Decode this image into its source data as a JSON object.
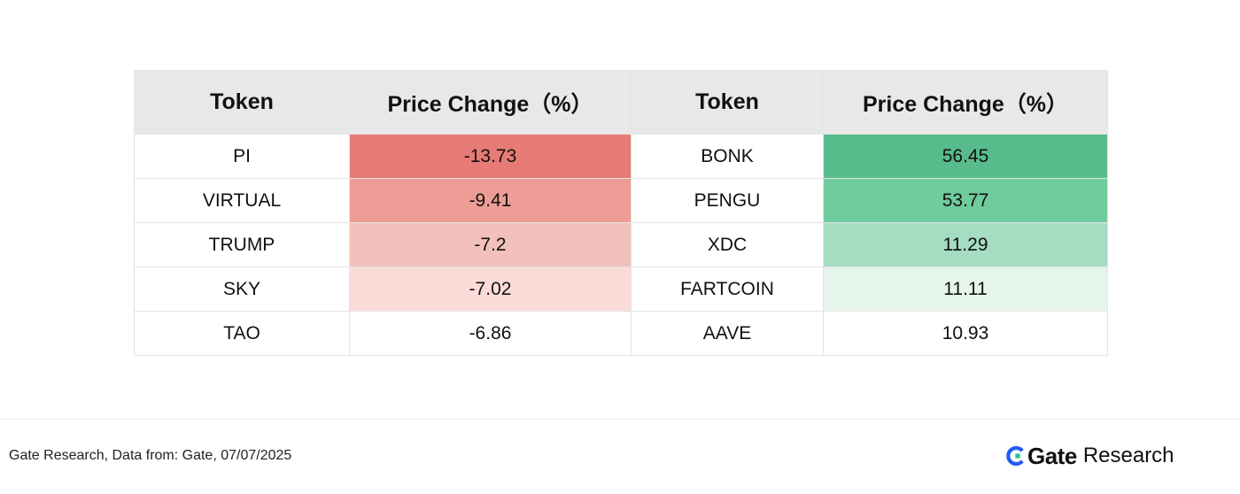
{
  "chart_data": {
    "type": "table",
    "columns": [
      "Token",
      "Price Change（%）",
      "Token",
      "Price Change（%）"
    ],
    "losers": [
      {
        "token": "PI",
        "change": "-13.73",
        "value": -13.73
      },
      {
        "token": "VIRTUAL",
        "change": "-9.41",
        "value": -9.41
      },
      {
        "token": "TRUMP",
        "change": "-7.2",
        "value": -7.2
      },
      {
        "token": "SKY",
        "change": "-7.02",
        "value": -7.02
      },
      {
        "token": "TAO",
        "change": "-6.86",
        "value": -6.86
      }
    ],
    "gainers": [
      {
        "token": "BONK",
        "change": "56.45",
        "value": 56.45
      },
      {
        "token": "PENGU",
        "change": "53.77",
        "value": 53.77
      },
      {
        "token": "XDC",
        "change": "11.29",
        "value": 11.29
      },
      {
        "token": "FARTCOIN",
        "change": "11.11",
        "value": 11.11
      },
      {
        "token": "AAVE",
        "change": "10.93",
        "value": 10.93
      }
    ],
    "loser_colors": [
      "#e77b75",
      "#ed9c96",
      "#f3c1bb",
      "#fadbd8",
      "#ffffff"
    ],
    "gainer_colors": [
      "#58bb8b",
      "#6fcc9c",
      "#a5dcc2",
      "#e6f5ec",
      "#ffffff"
    ]
  },
  "footer": {
    "source": "Gate Research, Data from: Gate, 07/07/2025"
  },
  "brand": {
    "name": "Gate",
    "suffix": "Research",
    "icon": "gate-logo-icon",
    "blue": "#1f5cf4",
    "green": "#22c38e"
  }
}
